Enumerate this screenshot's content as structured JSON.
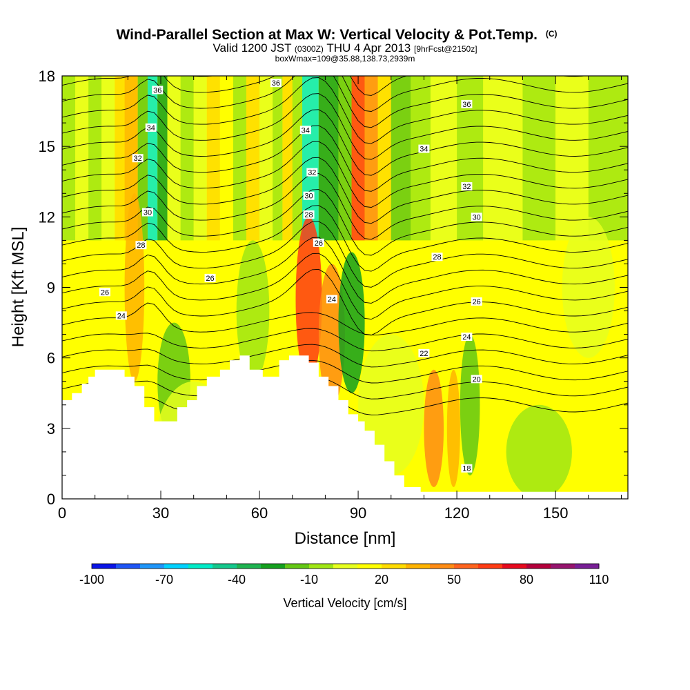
{
  "chart_data": {
    "type": "heatmap",
    "title": {
      "main": "Wind-Parallel Section at Max W: Vertical Velocity & Pot.Temp.",
      "copyright": "(C)",
      "line2_a": "Valid 1200 JST",
      "line2_b": "(0300Z)",
      "line2_c": "THU 4 Apr 2013",
      "line2_d": "[9hrFcst@2150z]",
      "line3": "boxWmax=109@35.88,138.73,2939m"
    },
    "xlabel": "Distance [nm]",
    "ylabel": "Height [Kft MSL]",
    "xlim": [
      0,
      172
    ],
    "ylim": [
      0,
      18
    ],
    "x_ticks": [
      "0",
      "30",
      "60",
      "90",
      "120",
      "150"
    ],
    "y_ticks": [
      "0",
      "3",
      "6",
      "9",
      "12",
      "15",
      "18"
    ],
    "colorbar": {
      "label": "Vertical Velocity [cm/s]",
      "tick_labels": [
        "-100",
        "-70",
        "-40",
        "-10",
        "20",
        "50",
        "80",
        "110"
      ],
      "colors": [
        "#0a14e6",
        "#1e55f5",
        "#1e96fa",
        "#00d2ff",
        "#00ebc8",
        "#14c88c",
        "#1eb450",
        "#14a01e",
        "#64c814",
        "#a0e614",
        "#e6ff1e",
        "#ffff00",
        "#ffdc00",
        "#ffb400",
        "#ff8c14",
        "#ff641e",
        "#ff3c14",
        "#e60a1e",
        "#b4003c",
        "#96146e",
        "#781e96"
      ]
    },
    "theta_contour_labels": [
      {
        "text": "36",
        "x": 29,
        "y": 17.4
      },
      {
        "text": "34",
        "x": 27,
        "y": 15.8
      },
      {
        "text": "32",
        "x": 23,
        "y": 14.5
      },
      {
        "text": "30",
        "x": 26,
        "y": 12.2
      },
      {
        "text": "28",
        "x": 24,
        "y": 10.8
      },
      {
        "text": "26",
        "x": 13,
        "y": 8.8
      },
      {
        "text": "24",
        "x": 18,
        "y": 7.8
      },
      {
        "text": "26",
        "x": 45,
        "y": 9.4
      },
      {
        "text": "36",
        "x": 65,
        "y": 17.7
      },
      {
        "text": "34",
        "x": 74,
        "y": 15.7
      },
      {
        "text": "32",
        "x": 76,
        "y": 13.9
      },
      {
        "text": "30",
        "x": 75,
        "y": 12.9
      },
      {
        "text": "28",
        "x": 75,
        "y": 12.1
      },
      {
        "text": "26",
        "x": 78,
        "y": 10.9
      },
      {
        "text": "24",
        "x": 82,
        "y": 8.5
      },
      {
        "text": "36",
        "x": 123,
        "y": 16.8
      },
      {
        "text": "34",
        "x": 110,
        "y": 14.9
      },
      {
        "text": "32",
        "x": 123,
        "y": 13.3
      },
      {
        "text": "30",
        "x": 126,
        "y": 12.0
      },
      {
        "text": "28",
        "x": 114,
        "y": 10.3
      },
      {
        "text": "26",
        "x": 126,
        "y": 8.4
      },
      {
        "text": "24",
        "x": 123,
        "y": 6.9
      },
      {
        "text": "22",
        "x": 110,
        "y": 6.2
      },
      {
        "text": "20",
        "x": 126,
        "y": 5.1
      },
      {
        "text": "18",
        "x": 123,
        "y": 1.3
      }
    ]
  }
}
